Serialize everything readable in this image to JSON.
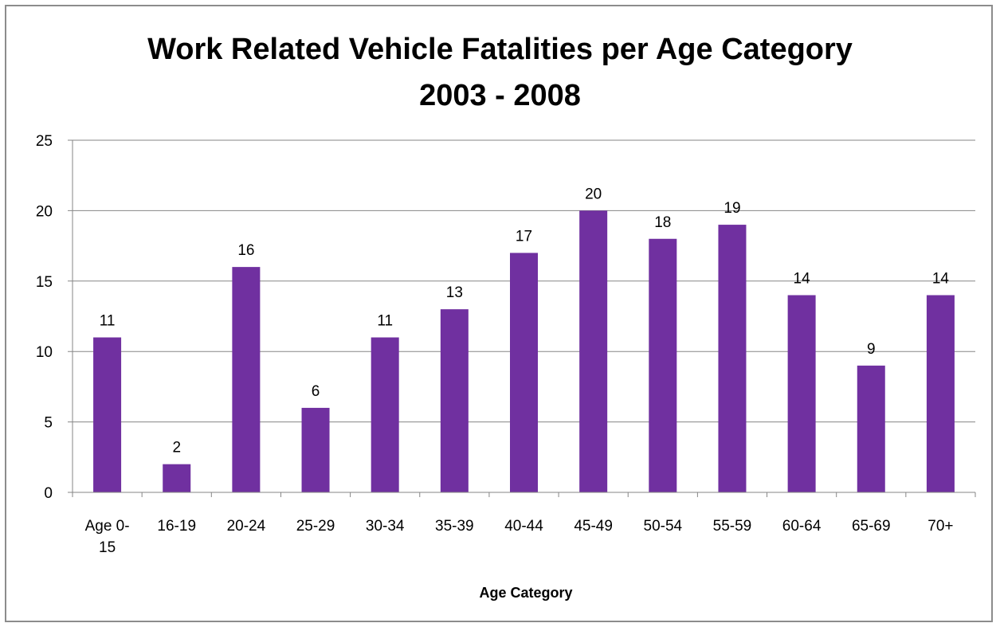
{
  "chart_data": {
    "type": "bar",
    "title_line1": "Work Related Vehicle Fatalities per Age Category",
    "title_line2": "2003 - 2008",
    "xlabel": "Age Category",
    "ylabel": "",
    "ylim": [
      0,
      25
    ],
    "yticks": [
      0,
      5,
      10,
      15,
      20,
      25
    ],
    "grid": true,
    "bar_color": "#7030a0",
    "categories": [
      [
        "Age 0-",
        "15"
      ],
      [
        "16-19"
      ],
      [
        "20-24"
      ],
      [
        "25-29"
      ],
      [
        "30-34"
      ],
      [
        "35-39"
      ],
      [
        "40-44"
      ],
      [
        "45-49"
      ],
      [
        "50-54"
      ],
      [
        "55-59"
      ],
      [
        "60-64"
      ],
      [
        "65-69"
      ],
      [
        "70+"
      ]
    ],
    "values": [
      11,
      2,
      16,
      6,
      11,
      13,
      17,
      20,
      18,
      19,
      14,
      9,
      14
    ]
  }
}
